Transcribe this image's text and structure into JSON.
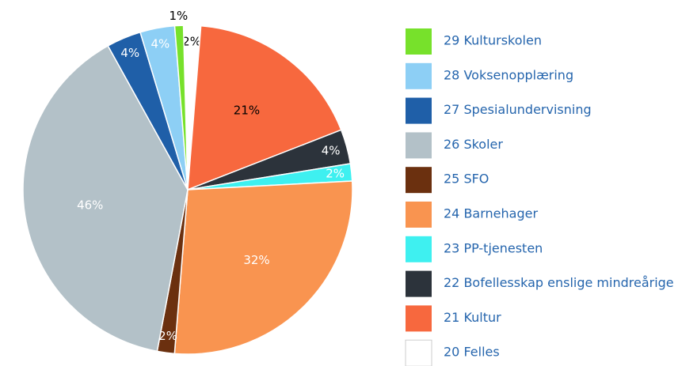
{
  "chart_data": {
    "type": "pie",
    "categories": [
      "20 Felles",
      "21 Kultur",
      "22 Bofellesskap enslige mindreårige",
      "23 PP-tjenesten",
      "24 Barnehager",
      "25 SFO",
      "26 Skoler",
      "27 Spesialundervisning",
      "28 Voksenopplæring",
      "29 Kulturskolen"
    ],
    "values": [
      2,
      21,
      4,
      2,
      32,
      2,
      46,
      4,
      4,
      1
    ],
    "value_labels": [
      "2%",
      "21%",
      "4%",
      "2%",
      "32%",
      "2%",
      "46%",
      "4%",
      "4%",
      "1%"
    ],
    "colors": [
      "#ffffff",
      "#f7683e",
      "#2c333b",
      "#3ef0f0",
      "#f99450",
      "#6b300f",
      "#b3c1c8",
      "#1f5fa8",
      "#8dcff5",
      "#77e12b"
    ]
  }
}
